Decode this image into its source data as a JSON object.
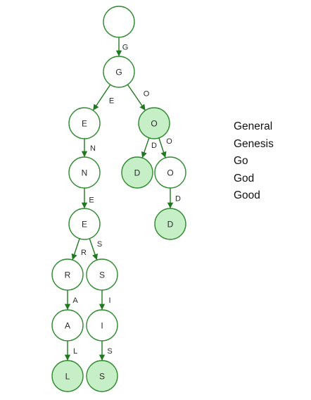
{
  "words": [
    "General",
    "Genesis",
    "Go",
    "God",
    "Good"
  ],
  "colors": {
    "stroke": "#2e8b2e",
    "edge": "#1f7a1f",
    "fill_end": "#c7efc7",
    "fill_plain": "#ffffff"
  },
  "trie": {
    "root": {
      "label": "",
      "is_end": false
    },
    "nodes": [
      {
        "id": "g",
        "label": "G",
        "parent": "root",
        "edge": "G",
        "is_end": false
      },
      {
        "id": "ge",
        "label": "E",
        "parent": "g",
        "edge": "E",
        "is_end": false
      },
      {
        "id": "go",
        "label": "O",
        "parent": "g",
        "edge": "O",
        "is_end": true
      },
      {
        "id": "gen",
        "label": "N",
        "parent": "ge",
        "edge": "N",
        "is_end": false
      },
      {
        "id": "gene",
        "label": "E",
        "parent": "gen",
        "edge": "E",
        "is_end": false
      },
      {
        "id": "gener",
        "label": "R",
        "parent": "gene",
        "edge": "R",
        "is_end": false
      },
      {
        "id": "genes",
        "label": "S",
        "parent": "gene",
        "edge": "S",
        "is_end": false
      },
      {
        "id": "genera",
        "label": "A",
        "parent": "gener",
        "edge": "A",
        "is_end": false
      },
      {
        "id": "general",
        "label": "L",
        "parent": "genera",
        "edge": "L",
        "is_end": true
      },
      {
        "id": "genesi",
        "label": "I",
        "parent": "genes",
        "edge": "I",
        "is_end": false
      },
      {
        "id": "genesis",
        "label": "S",
        "parent": "genesi",
        "edge": "S",
        "is_end": true
      },
      {
        "id": "god",
        "label": "D",
        "parent": "go",
        "edge": "D",
        "is_end": true
      },
      {
        "id": "goo",
        "label": "O",
        "parent": "go",
        "edge": "O",
        "is_end": false
      },
      {
        "id": "good",
        "label": "D",
        "parent": "goo",
        "edge": "D",
        "is_end": true
      }
    ]
  }
}
